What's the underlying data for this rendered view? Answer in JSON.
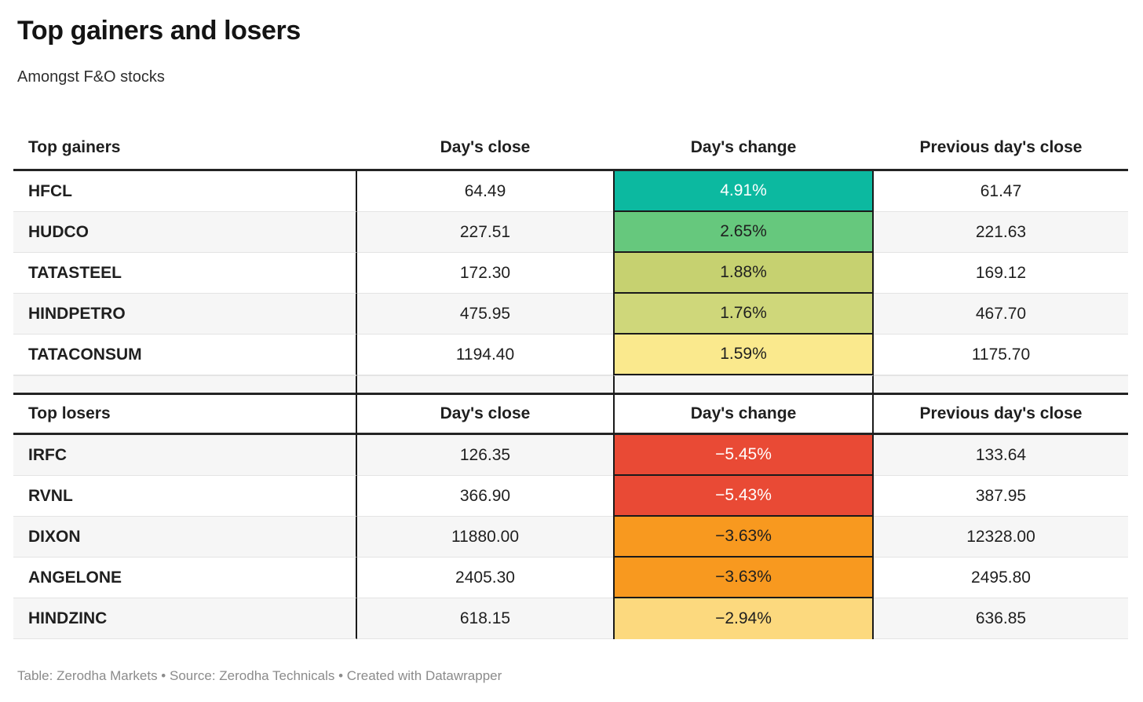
{
  "page": {
    "title": "Top gainers and losers",
    "subtitle": "Amongst F&O stocks",
    "footer": "Table: Zerodha Markets • Source: Zerodha Technicals • Created with Datawrapper"
  },
  "columns": {
    "close": "Day's close",
    "change": "Day's change",
    "prev": "Previous day's close"
  },
  "gainers": {
    "label": "Top gainers",
    "rows": [
      {
        "name": "HFCL",
        "close": "64.49",
        "change": "4.91%",
        "prev": "61.47",
        "bg": "#0cb9a0",
        "fg": "#ffffff"
      },
      {
        "name": "HUDCO",
        "close": "227.51",
        "change": "2.65%",
        "prev": "221.63",
        "bg": "#66c87d",
        "fg": "#1f1f1f"
      },
      {
        "name": "TATASTEEL",
        "close": "172.30",
        "change": "1.88%",
        "prev": "169.12",
        "bg": "#c6d170",
        "fg": "#1f1f1f"
      },
      {
        "name": "HINDPETRO",
        "close": "475.95",
        "change": "1.76%",
        "prev": "467.70",
        "bg": "#cfd77a",
        "fg": "#1f1f1f"
      },
      {
        "name": "TATACONSUM",
        "close": "1194.40",
        "change": "1.59%",
        "prev": "1175.70",
        "bg": "#fae98d",
        "fg": "#1f1f1f"
      }
    ]
  },
  "losers": {
    "label": "Top losers",
    "rows": [
      {
        "name": "IRFC",
        "close": "126.35",
        "change": "−5.45%",
        "prev": "133.64",
        "bg": "#e94a35",
        "fg": "#ffffff"
      },
      {
        "name": "RVNL",
        "close": "366.90",
        "change": "−5.43%",
        "prev": "387.95",
        "bg": "#e94a35",
        "fg": "#ffffff"
      },
      {
        "name": "DIXON",
        "close": "11880.00",
        "change": "−3.63%",
        "prev": "12328.00",
        "bg": "#f8991f",
        "fg": "#1f1f1f"
      },
      {
        "name": "ANGELONE",
        "close": "2405.30",
        "change": "−3.63%",
        "prev": "2495.80",
        "bg": "#f8991f",
        "fg": "#1f1f1f"
      },
      {
        "name": "HINDZINC",
        "close": "618.15",
        "change": "−2.94%",
        "prev": "636.85",
        "bg": "#fcd97e",
        "fg": "#1f1f1f"
      }
    ]
  },
  "chart_data": {
    "type": "table",
    "title": "Top gainers and losers",
    "subtitle": "Amongst F&O stocks",
    "columns": [
      "",
      "Day's close",
      "Day's change",
      "Previous day's close"
    ],
    "sections": [
      {
        "label": "Top gainers",
        "rows": [
          [
            "HFCL",
            64.49,
            "4.91%",
            61.47
          ],
          [
            "HUDCO",
            227.51,
            "2.65%",
            221.63
          ],
          [
            "TATASTEEL",
            172.3,
            "1.88%",
            169.12
          ],
          [
            "HINDPETRO",
            475.95,
            "1.76%",
            467.7
          ],
          [
            "TATACONSUM",
            1194.4,
            "1.59%",
            1175.7
          ]
        ]
      },
      {
        "label": "Top losers",
        "rows": [
          [
            "IRFC",
            126.35,
            "-5.45%",
            133.64
          ],
          [
            "RVNL",
            366.9,
            "-5.43%",
            387.95
          ],
          [
            "DIXON",
            11880.0,
            "-3.63%",
            12328.0
          ],
          [
            "ANGELONE",
            2405.3,
            "-3.63%",
            2495.8
          ],
          [
            "HINDZINC",
            618.15,
            "-2.94%",
            636.85
          ]
        ]
      }
    ],
    "heat_colors": {
      "strong_gain": "#0cb9a0",
      "gain": "#66c87d",
      "mild_gain_1": "#c6d170",
      "mild_gain_2": "#cfd77a",
      "low_gain": "#fae98d",
      "strong_loss": "#e94a35",
      "loss": "#f8991f",
      "mild_loss": "#fcd97e"
    },
    "footer": "Table: Zerodha Markets • Source: Zerodha Technicals • Created with Datawrapper"
  }
}
